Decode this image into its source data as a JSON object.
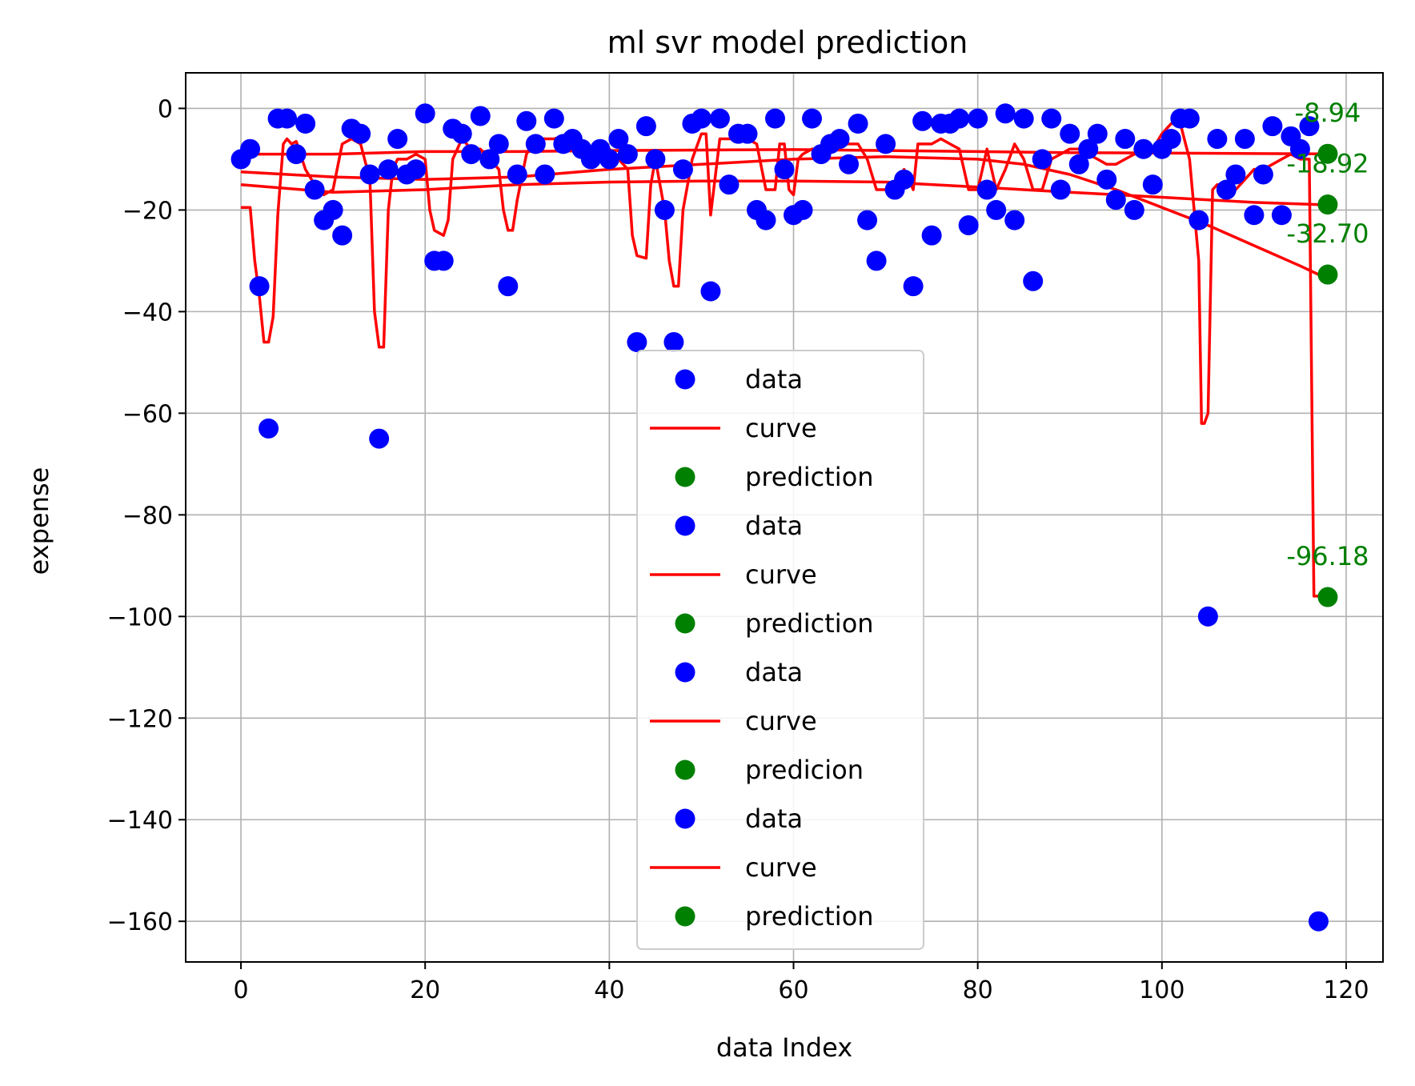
{
  "chart_data": {
    "type": "scatter",
    "title": "ml svr model prediction",
    "xlabel": "data Index",
    "ylabel": "expense",
    "xlim": [
      -6,
      124
    ],
    "ylim": [
      -168,
      7
    ],
    "xticks": [
      0,
      20,
      40,
      60,
      80,
      100,
      120
    ],
    "yticks": [
      0,
      -20,
      -40,
      -60,
      -80,
      -100,
      -120,
      -140,
      -160
    ],
    "grid": true,
    "legend_position": "lower-center",
    "colors": {
      "data": "#0000ff",
      "curve": "#ff0000",
      "prediction": "#008000"
    },
    "data_points": {
      "x": [
        0,
        1,
        2,
        3,
        4,
        5,
        6,
        7,
        8,
        9,
        10,
        11,
        12,
        13,
        14,
        15,
        16,
        17,
        18,
        19,
        20,
        21,
        22,
        23,
        24,
        25,
        26,
        27,
        28,
        29,
        30,
        31,
        32,
        33,
        34,
        35,
        36,
        37,
        38,
        39,
        40,
        41,
        42,
        43,
        44,
        45,
        46,
        47,
        48,
        49,
        50,
        51,
        52,
        53,
        54,
        55,
        56,
        57,
        58,
        59,
        60,
        61,
        62,
        63,
        64,
        65,
        66,
        67,
        68,
        69,
        70,
        71,
        72,
        73,
        74,
        75,
        76,
        77,
        78,
        79,
        80,
        81,
        82,
        83,
        84,
        85,
        86,
        87,
        88,
        89,
        90,
        91,
        92,
        93,
        94,
        95,
        96,
        97,
        98,
        99,
        100,
        101,
        102,
        103,
        104,
        105,
        106,
        107,
        108,
        109,
        110,
        111,
        112,
        113,
        114,
        115,
        116,
        117
      ],
      "y": [
        -10,
        -8,
        -35,
        -63,
        -2,
        -2,
        -9,
        -3,
        -16,
        -22,
        -20,
        -25,
        -4,
        -5,
        -13,
        -65,
        -12,
        -6,
        -13,
        -12,
        -1,
        -30,
        -30,
        -4,
        -5,
        -9,
        -1.5,
        -10,
        -7,
        -35,
        -13,
        -2.5,
        -7,
        -13,
        -2,
        -7,
        -6,
        -8,
        -10,
        -8,
        -10,
        -6,
        -9,
        -46,
        -3.5,
        -10,
        -20,
        -46,
        -12,
        -3,
        -2,
        -36,
        -2,
        -15,
        -5,
        -5,
        -20,
        -22,
        -2,
        -12,
        -21,
        -20,
        -2,
        -9,
        -7,
        -6,
        -11,
        -3,
        -22,
        -30,
        -7,
        -16,
        -14,
        -35,
        -2.5,
        -25,
        -3,
        -3,
        -2,
        -23,
        -2,
        -16,
        -20,
        -1,
        -22,
        -2,
        -34,
        -10,
        -2,
        -16,
        -5,
        -11,
        -8,
        -5,
        -14,
        -18,
        -6,
        -20,
        -8,
        -15,
        -8,
        -6,
        -2,
        -2,
        -22,
        -100,
        -6,
        -16,
        -13,
        -6,
        -21,
        -13,
        -3.5,
        -21,
        -5.5,
        -8,
        -3.5,
        -160
      ]
    },
    "curves": [
      {
        "name": "curve",
        "x": [
          0,
          10,
          20,
          30,
          40,
          50,
          60,
          70,
          80,
          90,
          100,
          110,
          117
        ],
        "y": [
          -9,
          -9,
          -8.5,
          -8.5,
          -8.3,
          -8.2,
          -8.1,
          -8.3,
          -8.5,
          -8.7,
          -8.8,
          -8.9,
          -8.94
        ]
      },
      {
        "name": "curve",
        "x": [
          0,
          10,
          20,
          30,
          40,
          50,
          60,
          70,
          80,
          90,
          100,
          110,
          117
        ],
        "y": [
          -15,
          -16.5,
          -16,
          -15,
          -14.5,
          -14.3,
          -14.3,
          -14.5,
          -15.5,
          -16.5,
          -17.5,
          -18.5,
          -18.92
        ]
      },
      {
        "name": "curve",
        "x": [
          0,
          10,
          20,
          30,
          40,
          50,
          60,
          70,
          80,
          85,
          90,
          95,
          100,
          105,
          110,
          115,
          117
        ],
        "y": [
          -12.5,
          -13.5,
          -14,
          -13.5,
          -12,
          -11,
          -10,
          -9.5,
          -10,
          -11,
          -13,
          -16,
          -19.5,
          -23,
          -27,
          -31,
          -32.7
        ]
      },
      {
        "name": "curve",
        "x": [
          0,
          1,
          1.5,
          2,
          2.5,
          3,
          3.5,
          4,
          4.3,
          4.6,
          5,
          5.5,
          6,
          7,
          8,
          9,
          10,
          11,
          12,
          13,
          14,
          14.5,
          15,
          15.5,
          16,
          16.5,
          17,
          17.5,
          18,
          19,
          20,
          20.5,
          21,
          22,
          22.5,
          23,
          24,
          25,
          26,
          27,
          28,
          28.5,
          29,
          29.5,
          30,
          31,
          32,
          33,
          34,
          35,
          36,
          37,
          38,
          39,
          40,
          41,
          42,
          42.5,
          43,
          44,
          44.5,
          45,
          46,
          46.5,
          47,
          47.5,
          48,
          49,
          50,
          50.5,
          51,
          52,
          53,
          54,
          55,
          56,
          57,
          58,
          58.5,
          59,
          59.5,
          60,
          60.5,
          61,
          62,
          63,
          64,
          65,
          66,
          67,
          68,
          69,
          70,
          71,
          72,
          73,
          73.5,
          74,
          75,
          76,
          77,
          78,
          79,
          80,
          81,
          82,
          83,
          84,
          85,
          86,
          87,
          88,
          89,
          90,
          91,
          92,
          93,
          94,
          95,
          96,
          97,
          98,
          99,
          100,
          101,
          102,
          103,
          104,
          104.3,
          104.6,
          105,
          105.5,
          106,
          107,
          108,
          109,
          110,
          111,
          112,
          113,
          114,
          115,
          116,
          116.5,
          117
        ],
        "y": [
          -19.5,
          -19.5,
          -30,
          -37,
          -46,
          -46,
          -41,
          -21,
          -14,
          -7,
          -6,
          -7,
          -6.5,
          -12,
          -15,
          -17,
          -16,
          -7,
          -6,
          -7,
          -14,
          -40,
          -47,
          -47,
          -20,
          -12,
          -10,
          -10,
          -10,
          -9,
          -10,
          -20,
          -24,
          -25,
          -22,
          -10,
          -6,
          -8,
          -8,
          -10,
          -12,
          -20,
          -24,
          -24,
          -18,
          -9,
          -6,
          -6,
          -6,
          -5.5,
          -6,
          -7,
          -9,
          -9,
          -8,
          -10,
          -12,
          -25,
          -29,
          -29.5,
          -15,
          -10,
          -20,
          -30,
          -35,
          -35,
          -20,
          -10,
          -5,
          -5,
          -21,
          -6,
          -6,
          -6,
          -6,
          -7,
          -16,
          -16,
          -7,
          -7,
          -16,
          -17,
          -10,
          -9,
          -8,
          -8,
          -8,
          -7,
          -7,
          -7,
          -10,
          -16,
          -16,
          -15,
          -12,
          -16,
          -7,
          -7,
          -7,
          -6,
          -7,
          -8,
          -16,
          -16,
          -8,
          -16,
          -12,
          -7,
          -10,
          -16,
          -16,
          -10,
          -9,
          -8,
          -8,
          -9,
          -10,
          -11,
          -11,
          -10,
          -9,
          -9,
          -8,
          -5,
          -3,
          -3,
          -10,
          -30,
          -62,
          -62,
          -60,
          -16,
          -15,
          -15,
          -16,
          -14,
          -12,
          -12,
          -11,
          -10,
          -9,
          -10,
          -10,
          -96,
          -96
        ]
      }
    ],
    "predictions": [
      {
        "x": 118,
        "y": -8.94,
        "label": "-8.94"
      },
      {
        "x": 118,
        "y": -18.92,
        "label": "-18.92"
      },
      {
        "x": 118,
        "y": -32.7,
        "label": "-32.70"
      },
      {
        "x": 118,
        "y": -96.18,
        "label": "-96.18"
      }
    ],
    "legend": [
      {
        "label": "data",
        "kind": "dot",
        "color": "#0000ff"
      },
      {
        "label": "curve",
        "kind": "line",
        "color": "#ff0000"
      },
      {
        "label": "prediction",
        "kind": "dot",
        "color": "#008000"
      },
      {
        "label": "data",
        "kind": "dot",
        "color": "#0000ff"
      },
      {
        "label": "curve",
        "kind": "line",
        "color": "#ff0000"
      },
      {
        "label": "prediction",
        "kind": "dot",
        "color": "#008000"
      },
      {
        "label": "data",
        "kind": "dot",
        "color": "#0000ff"
      },
      {
        "label": "curve",
        "kind": "line",
        "color": "#ff0000"
      },
      {
        "label": "predicion",
        "kind": "dot",
        "color": "#008000"
      },
      {
        "label": "data",
        "kind": "dot",
        "color": "#0000ff"
      },
      {
        "label": "curve",
        "kind": "line",
        "color": "#ff0000"
      },
      {
        "label": "prediction",
        "kind": "dot",
        "color": "#008000"
      }
    ]
  }
}
